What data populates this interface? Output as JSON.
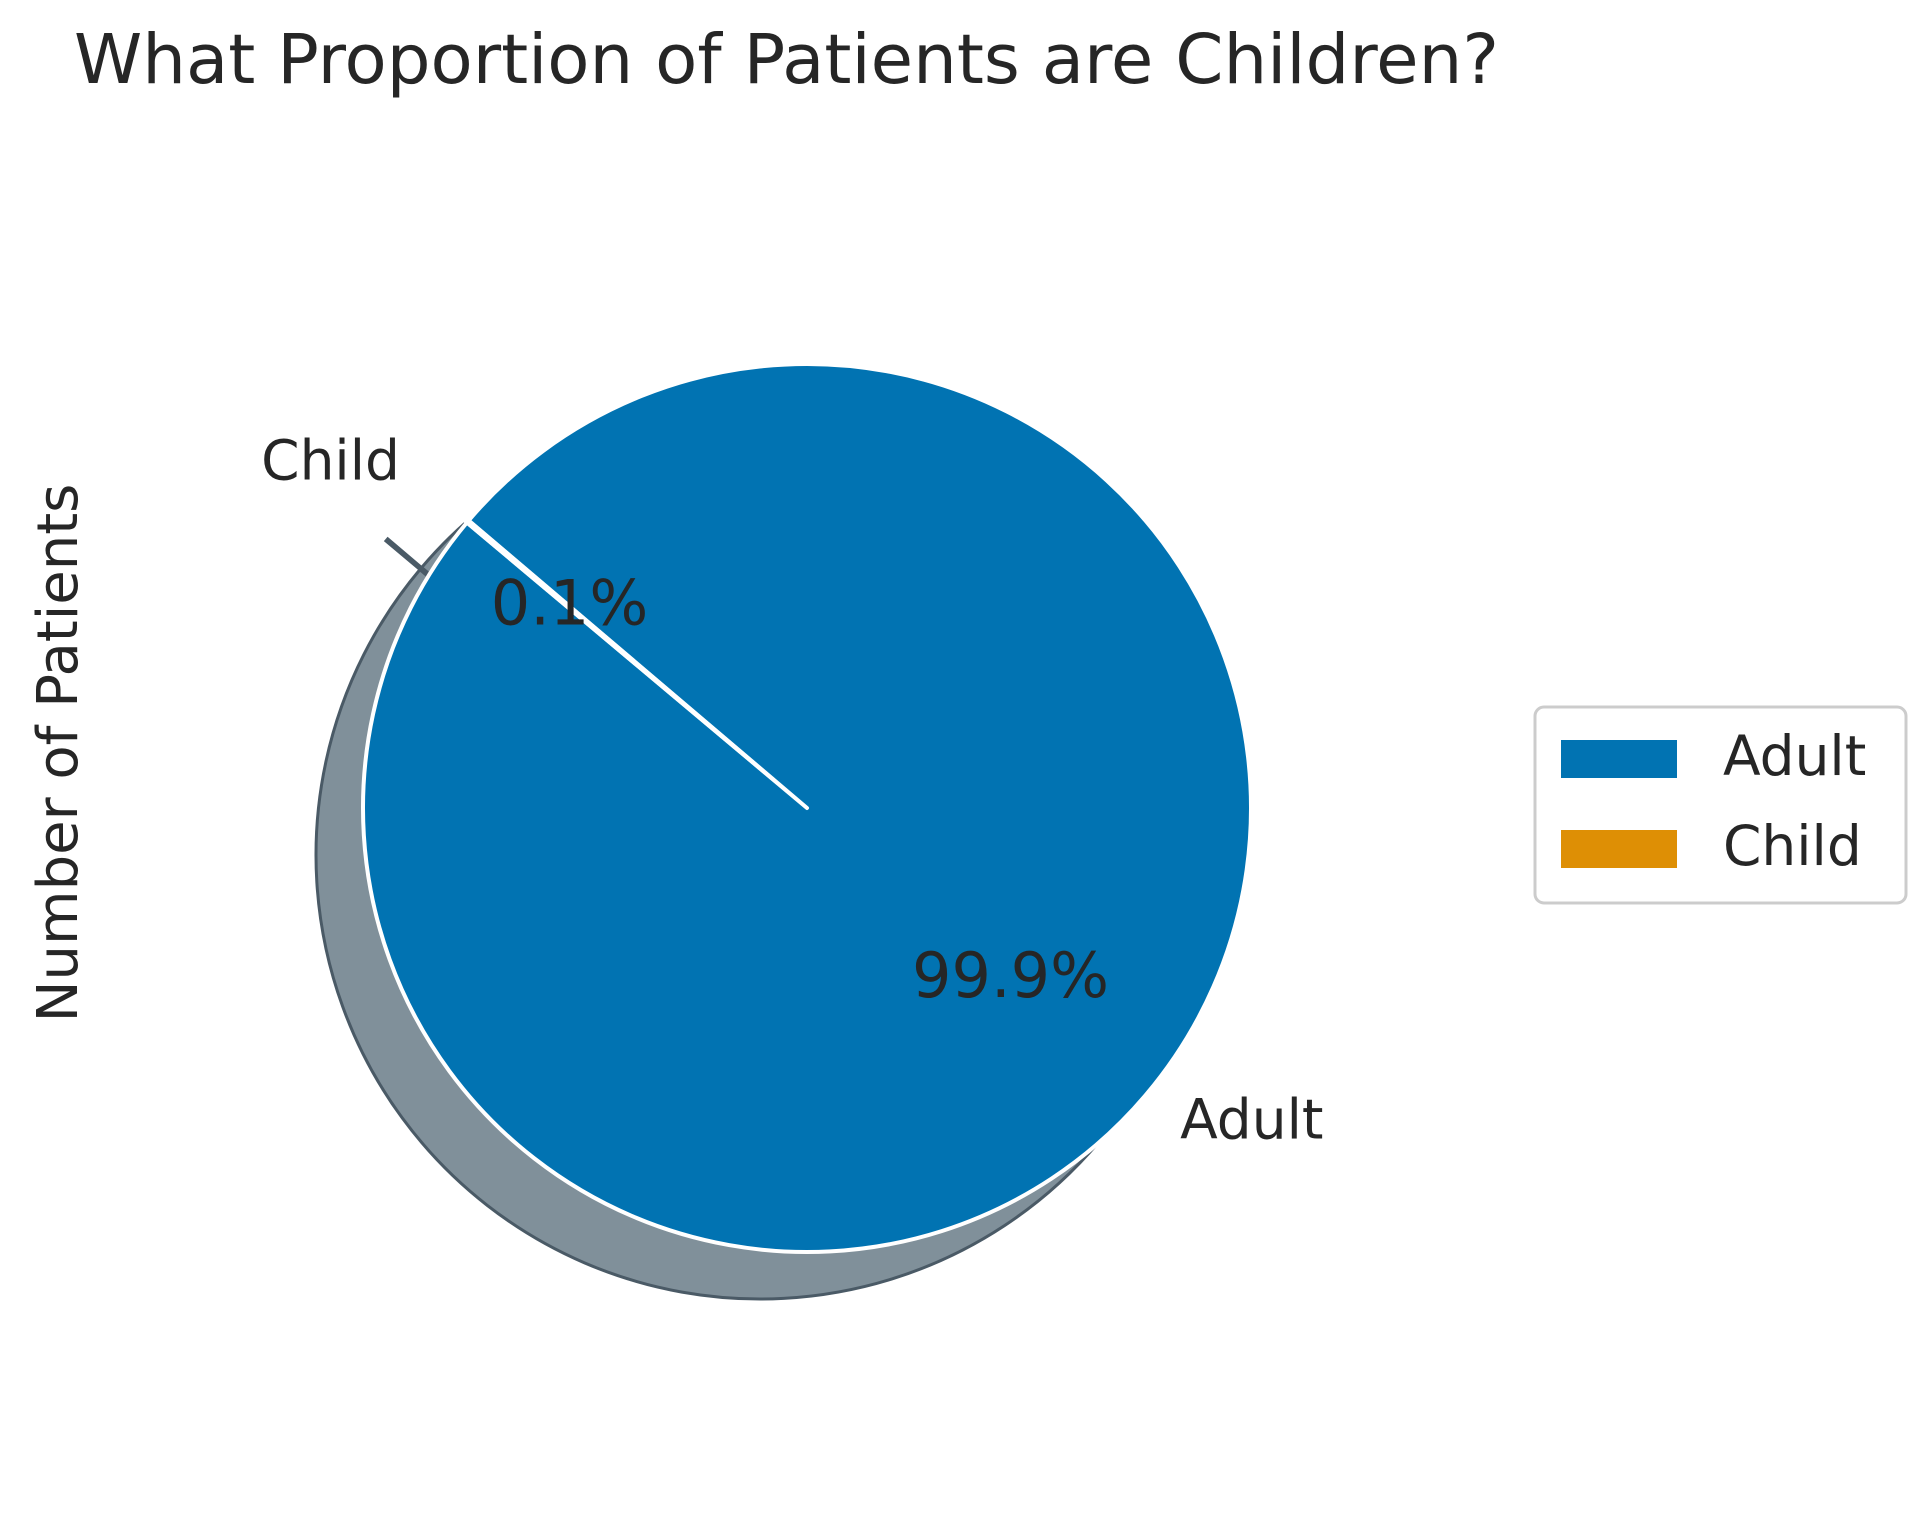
{
  "chart_data": {
    "type": "pie",
    "title": "What Proportion of Patients are Children?",
    "ylabel": "Number of Patients",
    "categories": [
      "Adult",
      "Child"
    ],
    "values": [
      99.9,
      0.1
    ],
    "percent_labels": [
      "99.9%",
      "0.1%"
    ],
    "colors": [
      "#0173b2",
      "#de8f05"
    ],
    "shadow": true,
    "start_angle_deg": 140,
    "explode": [
      0,
      0.1
    ],
    "legend": {
      "placement": "center-right",
      "entries": [
        "Adult",
        "Child"
      ]
    }
  }
}
